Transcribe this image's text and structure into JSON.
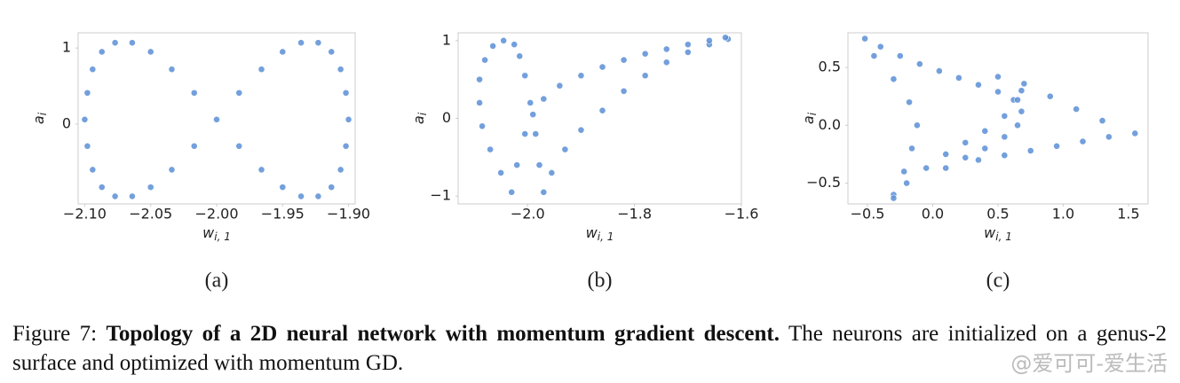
{
  "chart_data": [
    {
      "type": "scatter",
      "label": "(a)",
      "xlabel": "w",
      "xlabel_sub": "i, 1",
      "ylabel": "a",
      "ylabel_sub": "i",
      "color": "#5b8fd6",
      "xlim": [
        -2.105,
        -1.895
      ],
      "ylim": [
        -1.05,
        1.2
      ],
      "xticks": [
        {
          "value": -2.1,
          "label": "−2.10"
        },
        {
          "value": -2.05,
          "label": "−2.05"
        },
        {
          "value": -2.0,
          "label": "−2.00"
        },
        {
          "value": -1.95,
          "label": "−1.95"
        },
        {
          "value": -1.9,
          "label": "−1.90"
        }
      ],
      "yticks": [
        0,
        1
      ],
      "x": [
        -2.0,
        -1.983,
        -1.966,
        -1.95,
        -1.936,
        -1.923,
        -1.913,
        -1.906,
        -1.902,
        -1.9,
        -1.902,
        -1.906,
        -1.913,
        -1.923,
        -1.936,
        -1.95,
        -1.966,
        -1.983,
        -2.017,
        -2.034,
        -2.05,
        -2.064,
        -2.077,
        -2.087,
        -2.094,
        -2.098,
        -2.1,
        -2.098,
        -2.094,
        -2.087,
        -2.077,
        -2.064,
        -2.05,
        -2.034,
        -2.017
      ],
      "y": [
        0.06,
        0.41,
        0.72,
        0.95,
        1.07,
        1.07,
        0.95,
        0.72,
        0.41,
        0.06,
        -0.29,
        -0.6,
        -0.83,
        -0.95,
        -0.95,
        -0.83,
        -0.6,
        -0.29,
        0.41,
        0.72,
        0.95,
        1.07,
        1.07,
        0.95,
        0.72,
        0.41,
        0.06,
        -0.29,
        -0.6,
        -0.83,
        -0.95,
        -0.95,
        -0.83,
        -0.6,
        -0.29
      ]
    },
    {
      "type": "scatter",
      "label": "(b)",
      "xlabel": "w",
      "xlabel_sub": "i, 1",
      "ylabel": "a",
      "ylabel_sub": "i",
      "color": "#5b8fd6",
      "xlim": [
        -2.13,
        -1.6
      ],
      "ylim": [
        -1.1,
        1.1
      ],
      "xticks": [
        {
          "value": -2.0,
          "label": "−2.0"
        },
        {
          "value": -1.8,
          "label": "−1.8"
        },
        {
          "value": -1.6,
          "label": "−1.6"
        }
      ],
      "yticks": [
        {
          "value": -1,
          "label": "−1"
        },
        0,
        1
      ],
      "x": [
        -2.03,
        -2.05,
        -2.07,
        -2.085,
        -2.09,
        -2.09,
        -2.08,
        -2.065,
        -2.045,
        -2.025,
        -2.015,
        -2.005,
        -1.995,
        -1.985,
        -1.978,
        -1.97,
        -1.955,
        -1.93,
        -1.9,
        -1.86,
        -1.82,
        -1.78,
        -1.74,
        -1.7,
        -1.66,
        -1.625,
        -2.02,
        -2.005,
        -1.99,
        -1.97,
        -1.94,
        -1.9,
        -1.86,
        -1.82,
        -1.78,
        -1.74,
        -1.7,
        -1.66,
        -1.63
      ],
      "y": [
        -0.95,
        -0.7,
        -0.4,
        -0.1,
        0.2,
        0.5,
        0.75,
        0.93,
        1.0,
        0.95,
        0.8,
        0.55,
        0.2,
        -0.2,
        -0.6,
        -0.95,
        -0.7,
        -0.4,
        -0.15,
        0.1,
        0.35,
        0.55,
        0.72,
        0.85,
        0.95,
        1.02,
        -0.6,
        -0.2,
        0.05,
        0.25,
        0.42,
        0.55,
        0.66,
        0.75,
        0.83,
        0.89,
        0.95,
        1.0,
        1.04
      ]
    },
    {
      "type": "scatter",
      "label": "(c)",
      "xlabel": "w",
      "xlabel_sub": "i, 1",
      "ylabel": "a",
      "ylabel_sub": "i",
      "color": "#5b8fd6",
      "xlim": [
        -0.65,
        1.65
      ],
      "ylim": [
        -0.68,
        0.8
      ],
      "xticks": [
        {
          "value": -0.5,
          "label": "−0.5"
        },
        {
          "value": 0,
          "label": "0.0"
        },
        0.5,
        {
          "value": 1,
          "label": "1.0"
        },
        1.5
      ],
      "yticks": [
        {
          "value": -0.5,
          "label": "−0.5"
        },
        {
          "value": 0,
          "label": "0.0"
        },
        0.5
      ],
      "x": [
        -0.52,
        -0.4,
        -0.25,
        -0.1,
        0.05,
        0.2,
        0.35,
        0.5,
        0.62,
        0.68,
        0.65,
        0.55,
        0.4,
        0.25,
        0.1,
        -0.45,
        -0.3,
        -0.18,
        -0.12,
        -0.16,
        -0.22,
        -0.3,
        -0.3,
        -0.2,
        -0.05,
        0.1,
        0.25,
        0.4,
        0.55,
        0.65,
        0.68,
        0.5,
        0.7,
        0.9,
        1.1,
        1.3,
        1.55,
        1.35,
        1.15,
        0.95,
        0.75,
        0.55,
        0.35
      ],
      "y": [
        0.75,
        0.68,
        0.6,
        0.53,
        0.47,
        0.41,
        0.35,
        0.29,
        0.22,
        0.12,
        0.0,
        -0.1,
        -0.2,
        -0.28,
        -0.37,
        0.6,
        0.4,
        0.2,
        0.0,
        -0.2,
        -0.4,
        -0.6,
        -0.63,
        -0.5,
        -0.37,
        -0.25,
        -0.15,
        -0.05,
        0.08,
        0.22,
        0.3,
        0.42,
        0.36,
        0.25,
        0.14,
        0.04,
        -0.07,
        -0.1,
        -0.14,
        -0.18,
        -0.22,
        -0.26,
        -0.3
      ]
    }
  ],
  "caption": {
    "label": "Figure 7:",
    "bold": "Topology of a 2D neural network with momentum gradient descent.",
    "text": "The neurons are initialized on a genus-2 surface and optimized with momentum GD."
  },
  "watermark": "@爱可可-爱生活"
}
